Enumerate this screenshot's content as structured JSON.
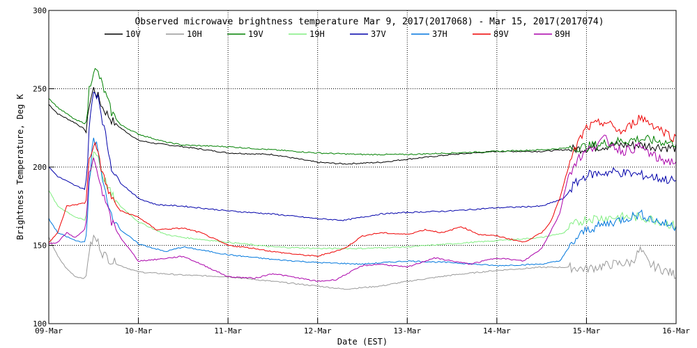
{
  "chart_data": {
    "type": "line",
    "title": "Observed microwave brightness temperature Mar  9, 2017(2017068) - Mar 15, 2017(2017074)",
    "xlabel": "Date (EST)",
    "ylabel": "Brightness Temperature, Deg K",
    "ylim": [
      100,
      300
    ],
    "xlim": [
      0,
      7
    ],
    "grid": true,
    "legend_position": "top",
    "x_tick_labels": [
      "09-Mar",
      "10-Mar",
      "11-Mar",
      "12-Mar",
      "13-Mar",
      "14-Mar",
      "15-Mar",
      "16-Mar"
    ],
    "y_tick_labels": [
      "100",
      "150",
      "200",
      "250",
      "300"
    ],
    "y_ticks": [
      100,
      150,
      200,
      250,
      300
    ],
    "series": [
      {
        "name": "10V",
        "color": "#000000",
        "points": [
          [
            0,
            240
          ],
          [
            0.1,
            234
          ],
          [
            0.3,
            228
          ],
          [
            0.4,
            224
          ],
          [
            0.42,
            222
          ],
          [
            0.45,
            240
          ],
          [
            0.48,
            246
          ],
          [
            0.5,
            250
          ],
          [
            0.55,
            245
          ],
          [
            0.6,
            238
          ],
          [
            0.7,
            230
          ],
          [
            0.8,
            225
          ],
          [
            1.0,
            217
          ],
          [
            1.2,
            215
          ],
          [
            1.5,
            213
          ],
          [
            2.0,
            209
          ],
          [
            2.5,
            208
          ],
          [
            3.0,
            203
          ],
          [
            3.3,
            202
          ],
          [
            3.7,
            203
          ],
          [
            4.0,
            205
          ],
          [
            4.5,
            208
          ],
          [
            5.0,
            210
          ],
          [
            5.5,
            210
          ],
          [
            6.0,
            212
          ],
          [
            6.3,
            214
          ],
          [
            6.6,
            214
          ],
          [
            7.0,
            212
          ]
        ]
      },
      {
        "name": "10H",
        "color": "#999999",
        "points": [
          [
            0,
            155
          ],
          [
            0.1,
            143
          ],
          [
            0.2,
            135
          ],
          [
            0.3,
            130
          ],
          [
            0.4,
            129
          ],
          [
            0.42,
            130
          ],
          [
            0.44,
            145
          ],
          [
            0.5,
            155
          ],
          [
            0.55,
            152
          ],
          [
            0.6,
            145
          ],
          [
            0.7,
            140
          ],
          [
            0.8,
            137
          ],
          [
            1.0,
            133
          ],
          [
            1.5,
            131
          ],
          [
            2.0,
            130
          ],
          [
            2.5,
            127
          ],
          [
            3.0,
            124
          ],
          [
            3.3,
            122
          ],
          [
            3.7,
            124
          ],
          [
            4.0,
            127
          ],
          [
            4.5,
            131
          ],
          [
            5.0,
            134
          ],
          [
            5.5,
            136
          ],
          [
            5.8,
            136
          ],
          [
            6.0,
            135
          ],
          [
            6.3,
            138
          ],
          [
            6.5,
            139
          ],
          [
            6.6,
            147
          ],
          [
            6.7,
            138
          ],
          [
            7.0,
            131
          ]
        ]
      },
      {
        "name": "19V",
        "color": "#008000",
        "points": [
          [
            0,
            244
          ],
          [
            0.1,
            238
          ],
          [
            0.3,
            230
          ],
          [
            0.4,
            228
          ],
          [
            0.42,
            226
          ],
          [
            0.45,
            250
          ],
          [
            0.5,
            262
          ],
          [
            0.55,
            260
          ],
          [
            0.6,
            252
          ],
          [
            0.7,
            235
          ],
          [
            0.8,
            227
          ],
          [
            1.0,
            221
          ],
          [
            1.3,
            216
          ],
          [
            1.5,
            214
          ],
          [
            2.0,
            213
          ],
          [
            2.5,
            211
          ],
          [
            3.0,
            209
          ],
          [
            3.5,
            208
          ],
          [
            4.0,
            208
          ],
          [
            4.5,
            209
          ],
          [
            5.0,
            210
          ],
          [
            5.5,
            211
          ],
          [
            6.0,
            213
          ],
          [
            6.3,
            216
          ],
          [
            6.6,
            218
          ],
          [
            7.0,
            215
          ]
        ]
      },
      {
        "name": "19H",
        "color": "#80ee80",
        "points": [
          [
            0,
            185
          ],
          [
            0.1,
            175
          ],
          [
            0.3,
            168
          ],
          [
            0.4,
            166
          ],
          [
            0.42,
            168
          ],
          [
            0.45,
            190
          ],
          [
            0.5,
            210
          ],
          [
            0.55,
            207
          ],
          [
            0.6,
            195
          ],
          [
            0.7,
            182
          ],
          [
            0.8,
            175
          ],
          [
            1.0,
            165
          ],
          [
            1.3,
            157
          ],
          [
            1.5,
            155
          ],
          [
            2.0,
            152
          ],
          [
            2.5,
            149
          ],
          [
            3.0,
            148
          ],
          [
            3.5,
            148
          ],
          [
            4.0,
            149
          ],
          [
            4.5,
            151
          ],
          [
            5.0,
            153
          ],
          [
            5.5,
            155
          ],
          [
            5.75,
            158
          ],
          [
            5.85,
            163
          ],
          [
            6.0,
            167
          ],
          [
            6.3,
            168
          ],
          [
            6.6,
            168
          ],
          [
            6.8,
            166
          ],
          [
            7.0,
            162
          ]
        ]
      },
      {
        "name": "37V",
        "color": "#0000aa",
        "points": [
          [
            0,
            200
          ],
          [
            0.1,
            194
          ],
          [
            0.3,
            188
          ],
          [
            0.4,
            186
          ],
          [
            0.42,
            190
          ],
          [
            0.45,
            225
          ],
          [
            0.5,
            248
          ],
          [
            0.55,
            246
          ],
          [
            0.6,
            230
          ],
          [
            0.7,
            200
          ],
          [
            0.8,
            190
          ],
          [
            1.0,
            180
          ],
          [
            1.2,
            176
          ],
          [
            1.5,
            175
          ],
          [
            2.0,
            172
          ],
          [
            2.5,
            170
          ],
          [
            3.0,
            167
          ],
          [
            3.3,
            166
          ],
          [
            3.7,
            170
          ],
          [
            4.0,
            171
          ],
          [
            4.5,
            172
          ],
          [
            5.0,
            174
          ],
          [
            5.5,
            175
          ],
          [
            5.75,
            180
          ],
          [
            5.85,
            188
          ],
          [
            6.0,
            195
          ],
          [
            6.3,
            197
          ],
          [
            6.6,
            195
          ],
          [
            6.8,
            193
          ],
          [
            7.0,
            191
          ]
        ]
      },
      {
        "name": "37H",
        "color": "#0077dd",
        "points": [
          [
            0,
            167
          ],
          [
            0.1,
            158
          ],
          [
            0.3,
            153
          ],
          [
            0.4,
            152
          ],
          [
            0.42,
            155
          ],
          [
            0.45,
            190
          ],
          [
            0.5,
            220
          ],
          [
            0.55,
            210
          ],
          [
            0.6,
            190
          ],
          [
            0.7,
            170
          ],
          [
            0.8,
            160
          ],
          [
            1.0,
            151
          ],
          [
            1.3,
            146
          ],
          [
            1.5,
            149
          ],
          [
            2.0,
            144
          ],
          [
            2.5,
            141
          ],
          [
            3.0,
            139
          ],
          [
            3.5,
            138
          ],
          [
            4.0,
            140
          ],
          [
            4.5,
            139
          ],
          [
            5.0,
            137
          ],
          [
            5.5,
            138
          ],
          [
            5.7,
            140
          ],
          [
            5.8,
            148
          ],
          [
            5.9,
            155
          ],
          [
            6.0,
            160
          ],
          [
            6.3,
            165
          ],
          [
            6.6,
            170
          ],
          [
            6.8,
            165
          ],
          [
            7.0,
            162
          ]
        ]
      },
      {
        "name": "89V",
        "color": "#ee0000",
        "points": [
          [
            0,
            152
          ],
          [
            0.1,
            158
          ],
          [
            0.2,
            175
          ],
          [
            0.3,
            176
          ],
          [
            0.4,
            177
          ],
          [
            0.42,
            180
          ],
          [
            0.45,
            205
          ],
          [
            0.5,
            215
          ],
          [
            0.55,
            210
          ],
          [
            0.6,
            195
          ],
          [
            0.7,
            180
          ],
          [
            0.8,
            172
          ],
          [
            1.0,
            168
          ],
          [
            1.2,
            160
          ],
          [
            1.5,
            161
          ],
          [
            1.7,
            158
          ],
          [
            2.0,
            150
          ],
          [
            2.3,
            148
          ],
          [
            2.5,
            146
          ],
          [
            2.8,
            144
          ],
          [
            3.0,
            143
          ],
          [
            3.3,
            148
          ],
          [
            3.5,
            156
          ],
          [
            3.7,
            158
          ],
          [
            4.0,
            157
          ],
          [
            4.2,
            160
          ],
          [
            4.4,
            158
          ],
          [
            4.6,
            162
          ],
          [
            4.8,
            157
          ],
          [
            5.0,
            156
          ],
          [
            5.3,
            152
          ],
          [
            5.5,
            158
          ],
          [
            5.6,
            165
          ],
          [
            5.7,
            180
          ],
          [
            5.8,
            200
          ],
          [
            5.9,
            215
          ],
          [
            6.0,
            225
          ],
          [
            6.2,
            229
          ],
          [
            6.4,
            222
          ],
          [
            6.6,
            232
          ],
          [
            6.8,
            225
          ],
          [
            7.0,
            218
          ]
        ]
      },
      {
        "name": "89H",
        "color": "#aa00aa",
        "points": [
          [
            0,
            151
          ],
          [
            0.1,
            152
          ],
          [
            0.2,
            158
          ],
          [
            0.3,
            155
          ],
          [
            0.4,
            160
          ],
          [
            0.42,
            165
          ],
          [
            0.45,
            195
          ],
          [
            0.5,
            205
          ],
          [
            0.55,
            197
          ],
          [
            0.6,
            183
          ],
          [
            0.7,
            165
          ],
          [
            0.8,
            155
          ],
          [
            1.0,
            140
          ],
          [
            1.2,
            141
          ],
          [
            1.5,
            143
          ],
          [
            1.7,
            138
          ],
          [
            2.0,
            130
          ],
          [
            2.3,
            129
          ],
          [
            2.5,
            132
          ],
          [
            2.7,
            130
          ],
          [
            3.0,
            127
          ],
          [
            3.2,
            128
          ],
          [
            3.5,
            137
          ],
          [
            3.7,
            138
          ],
          [
            4.0,
            136
          ],
          [
            4.3,
            142
          ],
          [
            4.5,
            140
          ],
          [
            4.7,
            138
          ],
          [
            5.0,
            142
          ],
          [
            5.3,
            140
          ],
          [
            5.5,
            148
          ],
          [
            5.7,
            170
          ],
          [
            5.8,
            195
          ],
          [
            5.9,
            205
          ],
          [
            6.0,
            210
          ],
          [
            6.2,
            218
          ],
          [
            6.4,
            210
          ],
          [
            6.6,
            213
          ],
          [
            6.8,
            205
          ],
          [
            7.0,
            203
          ]
        ]
      }
    ]
  }
}
